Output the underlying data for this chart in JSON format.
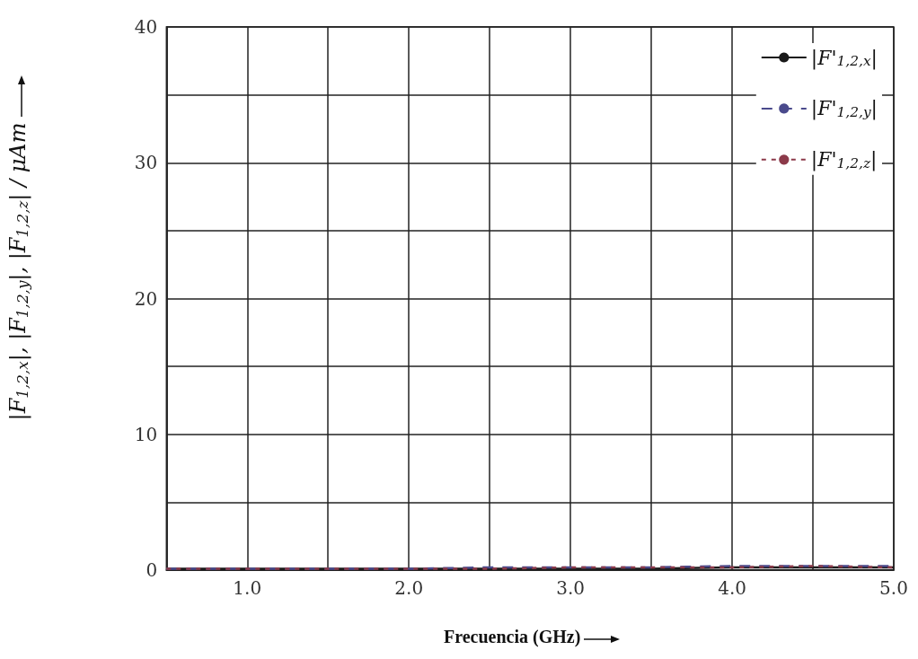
{
  "chart_data": {
    "type": "line",
    "xlabel": "Frecuencia (GHz)",
    "ylabel": "|F$_{1,2,x}$|, |F$_{1,2,y}$|, |F$_{1,2,z}$| / μAm",
    "x": [
      0.5,
      1,
      1.5,
      2,
      2.5,
      3,
      3.5,
      4,
      4.5,
      5
    ],
    "series": [
      {
        "name": "|F'$_{1,2,x}$|",
        "color": "#1a1a1a",
        "line_style": "solid",
        "values": [
          0.1,
          0.1,
          0.1,
          0.1,
          0.1,
          0.1,
          0.1,
          0.2,
          0.2,
          0.2
        ]
      },
      {
        "name": "|F'$_{1,2,y}$|",
        "color": "#4a4a8c",
        "line_style": "dashed",
        "values": [
          0.1,
          0.1,
          0.1,
          0.1,
          0.2,
          0.2,
          0.2,
          0.3,
          0.3,
          0.3
        ]
      },
      {
        "name": "|F'$_{1,2,z}$|",
        "color": "#8c3a4a",
        "line_style": "dotted",
        "values": [
          0.1,
          0.1,
          0.1,
          0.1,
          0.1,
          0.2,
          0.2,
          0.2,
          0.3,
          0.2
        ]
      }
    ],
    "xlim": [
      0.5,
      5
    ],
    "xticks": [
      {
        "value": 0.5,
        "label": null
      },
      {
        "value": 1,
        "label": "1.0"
      },
      {
        "value": 1.5,
        "label": null
      },
      {
        "value": 2,
        "label": "2.0"
      },
      {
        "value": 2.5,
        "label": null
      },
      {
        "value": 3,
        "label": "3.0"
      },
      {
        "value": 3.5,
        "label": null
      },
      {
        "value": 4,
        "label": "4.0"
      },
      {
        "value": 4.5,
        "label": null
      },
      {
        "value": 5,
        "label": "5.0"
      }
    ],
    "ylim": [
      0,
      40
    ],
    "yticks": [
      0,
      {
        "value": 5,
        "label": null
      },
      10,
      {
        "value": 15,
        "label": null
      },
      20,
      {
        "value": 25,
        "label": null
      },
      30,
      {
        "value": 35,
        "label": null
      },
      40
    ],
    "grid": true,
    "legend": "top right",
    "marker": "none"
  }
}
